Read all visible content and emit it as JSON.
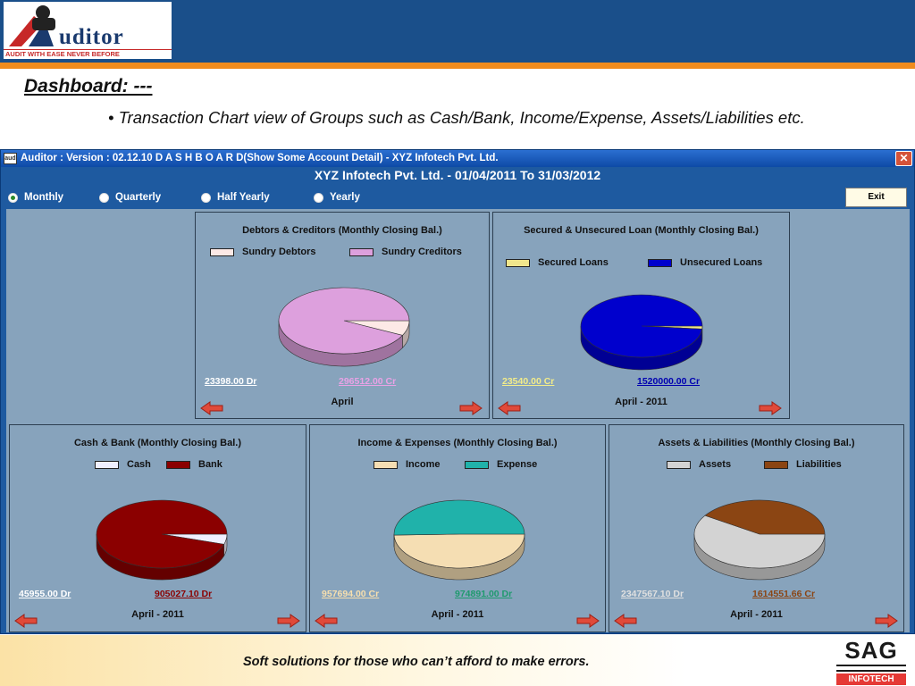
{
  "slide": {
    "logo_text": "uditor",
    "logo_tagline": "AUDIT WITH EASE NEVER BEFORE",
    "title": "Dashboard: ---",
    "bullet_marker": "•",
    "bullet": "Transaction Chart view of Groups such as Cash/Bank, Income/Expense, Assets/Liabilities etc.",
    "footer_text": "Soft solutions for those who can’t afford to make errors.",
    "footer_logo": "SAG",
    "footer_logo_sub": "INFOTECH"
  },
  "window": {
    "title": "Auditor : Version : 02.12.10 D A S H B O A R D(Show Some Account Detail) - XYZ Infotech Pvt. Ltd.",
    "icon_label": "aud",
    "close_symbol": "✕",
    "company_heading": "XYZ Infotech Pvt. Ltd. - 01/04/2011 To 31/03/2012",
    "period_options": [
      "Monthly",
      "Quarterly",
      "Half Yearly",
      "Yearly"
    ],
    "selected_period": "Monthly",
    "exit_label": "Exit"
  },
  "panels": [
    {
      "title": "Debtors & Creditors (Monthly Closing Bal.)",
      "legend": [
        {
          "label": "Sundry Debtors",
          "color": "#fde9e6"
        },
        {
          "label": "Sundry Creditors",
          "color": "#dda0dd"
        }
      ],
      "amount_left": "23398.00 Dr",
      "amount_left_color": "#ffffff",
      "amount_right": "296512.00 Cr",
      "amount_right_color": "#e9a2e6",
      "period": "April"
    },
    {
      "title": "Secured & Unsecured Loan (Monthly Closing Bal.)",
      "legend": [
        {
          "label": "Secured Loans",
          "color": "#f0e68c"
        },
        {
          "label": "Unsecured Loans",
          "color": "#0000cd"
        }
      ],
      "amount_left": "23540.00 Cr",
      "amount_left_color": "#f2ec8a",
      "amount_right": "1520000.00 Cr",
      "amount_right_color": "#0000b0",
      "period": "April - 2011"
    },
    {
      "title": "Cash & Bank (Monthly Closing Bal.)",
      "legend": [
        {
          "label": "Cash",
          "color": "#f0f0ff"
        },
        {
          "label": "Bank",
          "color": "#8b0000"
        }
      ],
      "amount_left": "45955.00 Dr",
      "amount_left_color": "#ffffff",
      "amount_right": "905027.10 Dr",
      "amount_right_color": "#8b0000",
      "period": "April - 2011"
    },
    {
      "title": "Income & Expenses (Monthly Closing Bal.)",
      "legend": [
        {
          "label": "Income",
          "color": "#f5deb3"
        },
        {
          "label": "Expense",
          "color": "#20b2aa"
        }
      ],
      "amount_left": "957694.00 Cr",
      "amount_left_color": "#f7dfae",
      "amount_right": "974891.00 Dr",
      "amount_right_color": "#1f9a6e",
      "period": "April - 2011"
    },
    {
      "title": "Assets & Liabilities (Monthly Closing Bal.)",
      "legend": [
        {
          "label": "Assets",
          "color": "#d3d3d3"
        },
        {
          "label": "Liabilities",
          "color": "#8b4513"
        }
      ],
      "amount_left": "2347567.10 Dr",
      "amount_left_color": "#e0e0e0",
      "amount_right": "1614551.66 Cr",
      "amount_right_color": "#8b4513",
      "period": "April - 2011"
    }
  ],
  "chart_data": [
    {
      "type": "pie",
      "title": "Debtors & Creditors (Monthly Closing Bal.)",
      "categories": [
        "Sundry Debtors",
        "Sundry Creditors"
      ],
      "values": [
        23398.0,
        296512.0
      ]
    },
    {
      "type": "pie",
      "title": "Secured & Unsecured Loan (Monthly Closing Bal.)",
      "categories": [
        "Secured Loans",
        "Unsecured Loans"
      ],
      "values": [
        23540.0,
        1520000.0
      ]
    },
    {
      "type": "pie",
      "title": "Cash & Bank (Monthly Closing Bal.)",
      "categories": [
        "Cash",
        "Bank"
      ],
      "values": [
        45955.0,
        905027.1
      ]
    },
    {
      "type": "pie",
      "title": "Income & Expenses (Monthly Closing Bal.)",
      "categories": [
        "Income",
        "Expense"
      ],
      "values": [
        957694.0,
        974891.0
      ]
    },
    {
      "type": "pie",
      "title": "Assets & Liabilities (Monthly Closing Bal.)",
      "categories": [
        "Assets",
        "Liabilities"
      ],
      "values": [
        2347567.1,
        1614551.66
      ]
    }
  ]
}
